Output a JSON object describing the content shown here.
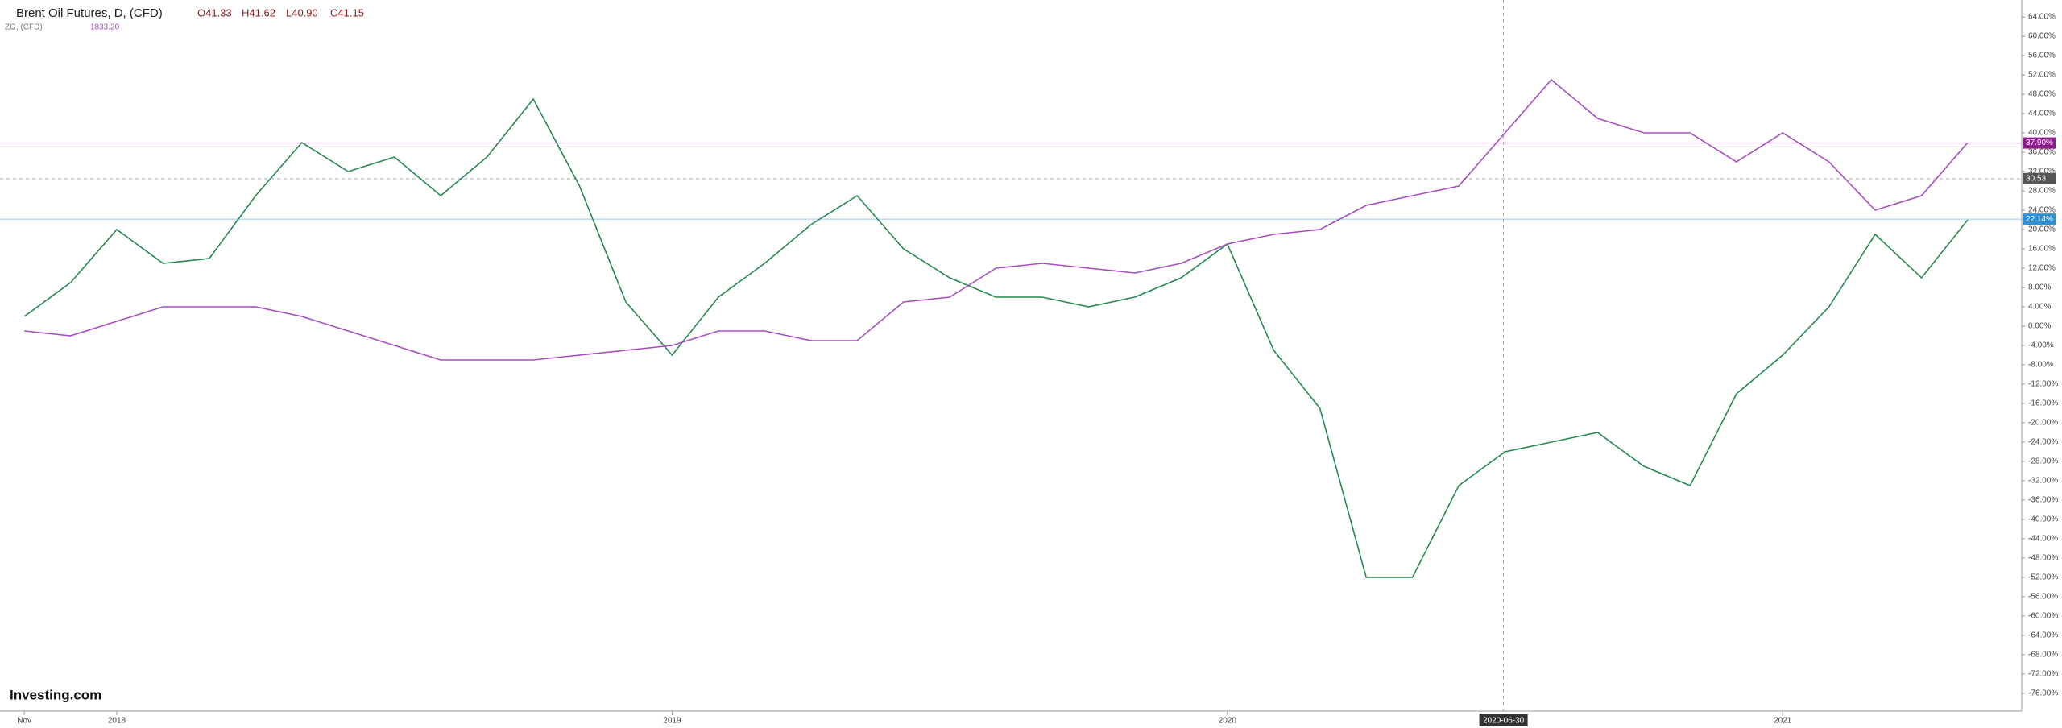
{
  "chart_data": {
    "type": "line",
    "title": "Brent Oil Futures, D, (CFD)",
    "ohlc": [
      "O41.33",
      "H41.62",
      "L40.90",
      "C41.15"
    ],
    "compare_title": "ZG, (CFD)",
    "compare_value": "1833.20",
    "logo": "Investing.com",
    "x": [
      "2017-11",
      "2017-12",
      "2018-01",
      "2018-02",
      "2018-03",
      "2018-04",
      "2018-05",
      "2018-06",
      "2018-07",
      "2018-08",
      "2018-09",
      "2018-10",
      "2018-11",
      "2018-12",
      "2019-01",
      "2019-02",
      "2019-03",
      "2019-04",
      "2019-05",
      "2019-06",
      "2019-07",
      "2019-08",
      "2019-09",
      "2019-10",
      "2019-11",
      "2019-12",
      "2020-01",
      "2020-02",
      "2020-03",
      "2020-04",
      "2020-05",
      "2020-06",
      "2020-07",
      "2020-08",
      "2020-09",
      "2020-10",
      "2020-11",
      "2020-12",
      "2021-01",
      "2021-02",
      "2021-03",
      "2021-04",
      "2021-05"
    ],
    "series": [
      {
        "name": "Brent Oil Futures",
        "color": "#26894f",
        "values": [
          2,
          9,
          20,
          13,
          14,
          27,
          38,
          32,
          35,
          27,
          35,
          47,
          29,
          5,
          -6,
          6,
          13,
          21,
          27,
          16,
          10,
          6,
          6,
          4,
          6,
          10,
          17,
          -5,
          -17,
          -52,
          -52,
          -33,
          -26,
          -24,
          -22,
          -29,
          -33,
          -14,
          -6,
          4,
          19,
          10,
          22
        ]
      },
      {
        "name": "ZG",
        "color": "#a64dbf",
        "values": [
          -1,
          -2,
          1,
          4,
          4,
          4,
          2,
          -1,
          -4,
          -7,
          -7,
          -7,
          -6,
          -5,
          -4,
          -1,
          -1,
          -3,
          -3,
          5,
          6,
          12,
          13,
          12,
          11,
          13,
          17,
          19,
          20,
          25,
          27,
          29,
          40,
          51,
          43,
          40,
          40,
          34,
          40,
          34,
          24,
          27,
          38
        ]
      }
    ],
    "price_labels": [
      {
        "value": 37.9,
        "label": "37.90%",
        "color": "#8e1a8e"
      },
      {
        "value": 30.53,
        "label": "30.53",
        "color": "#555555"
      },
      {
        "value": 22.14,
        "label": "22.14%",
        "color": "#2d8fd8"
      }
    ],
    "crosshair_x": "2020-06-30",
    "xticks": [
      {
        "value": "2017-11",
        "label": "Nov"
      },
      {
        "value": "2018-01",
        "label": "2018"
      },
      {
        "value": "2019-01",
        "label": "2019"
      },
      {
        "value": "2020-01",
        "label": "2020"
      },
      {
        "value": "2021-01",
        "label": "2021"
      }
    ],
    "ylim": [
      -79.5,
      67.5
    ],
    "yticks": [
      {
        "value": -76,
        "label": "-76.00%"
      },
      {
        "value": -72,
        "label": "-72.00%"
      },
      {
        "value": -68,
        "label": "-68.00%"
      },
      {
        "value": -64,
        "label": "-64.00%"
      },
      {
        "value": -60,
        "label": "-60.00%"
      },
      {
        "value": -56,
        "label": "-56.00%"
      },
      {
        "value": -52,
        "label": "-52.00%"
      },
      {
        "value": -48,
        "label": "-48.00%"
      },
      {
        "value": -44,
        "label": "-44.00%"
      },
      {
        "value": -40,
        "label": "-40.00%"
      },
      {
        "value": -36,
        "label": "-36.00%"
      },
      {
        "value": -32,
        "label": "-32.00%"
      },
      {
        "value": -28,
        "label": "-28.00%"
      },
      {
        "value": -24,
        "label": "-24.00%"
      },
      {
        "value": -20,
        "label": "-20.00%"
      },
      {
        "value": -16,
        "label": "-16.00%"
      },
      {
        "value": -12,
        "label": "-12.00%"
      },
      {
        "value": -8,
        "label": "-8.00%"
      },
      {
        "value": -4,
        "label": "-4.00%"
      },
      {
        "value": 0,
        "label": "0.00%"
      },
      {
        "value": 4,
        "label": "4.00%"
      },
      {
        "value": 8,
        "label": "8.00%"
      },
      {
        "value": 12,
        "label": "12.00%"
      },
      {
        "value": 16,
        "label": "16.00%"
      },
      {
        "value": 20,
        "label": "20.00%"
      },
      {
        "value": 24,
        "label": "24.00%"
      },
      {
        "value": 28,
        "label": "28.00%"
      },
      {
        "value": 32,
        "label": "32.00%"
      },
      {
        "value": 36,
        "label": "36.00%"
      },
      {
        "value": 40,
        "label": "40.00%"
      },
      {
        "value": 44,
        "label": "44.00%"
      },
      {
        "value": 48,
        "label": "48.00%"
      },
      {
        "value": 52,
        "label": "52.00%"
      },
      {
        "value": 56,
        "label": "56.00%"
      },
      {
        "value": 60,
        "label": "60.00%"
      },
      {
        "value": 64,
        "label": "64.00%"
      }
    ]
  }
}
